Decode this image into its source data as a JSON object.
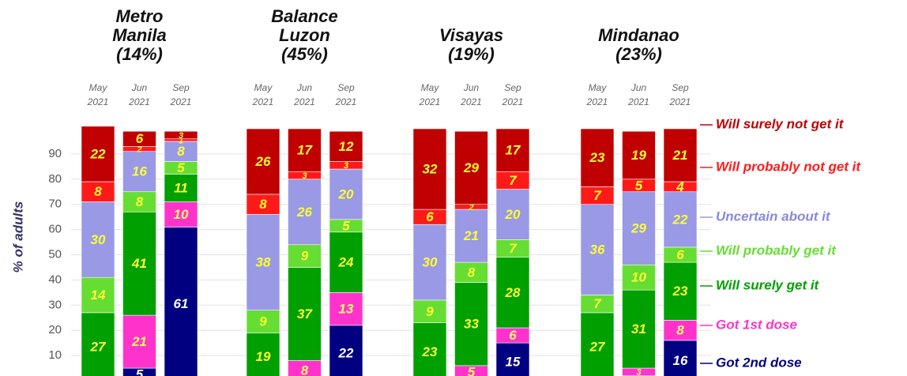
{
  "chart_data": {
    "type": "bar",
    "stacked": true,
    "ylabel": "% of adults",
    "ylim": [
      0,
      100
    ],
    "yticks": [
      10,
      20,
      30,
      40,
      50,
      60,
      70,
      80,
      90
    ],
    "grid": true,
    "legend": "right",
    "groups": [
      {
        "title_lines": [
          "Metro",
          "Manila",
          "(14%)"
        ],
        "categories": [
          [
            "May",
            "2021"
          ],
          [
            "Jun",
            "2021"
          ],
          [
            "Sep",
            "2021"
          ]
        ]
      },
      {
        "title_lines": [
          "Balance",
          "Luzon",
          "(45%)"
        ],
        "categories": [
          [
            "May",
            "2021"
          ],
          [
            "Jun",
            "2021"
          ],
          [
            "Sep",
            "2021"
          ]
        ]
      },
      {
        "title_lines": [
          "Visayas",
          "(19%)"
        ],
        "categories": [
          [
            "May",
            "2021"
          ],
          [
            "Jun",
            "2021"
          ],
          [
            "Sep",
            "2021"
          ]
        ]
      },
      {
        "title_lines": [
          "Mindanao",
          "(23%)"
        ],
        "categories": [
          [
            "May",
            "2021"
          ],
          [
            "Jun",
            "2021"
          ],
          [
            "Sep",
            "2021"
          ]
        ]
      }
    ],
    "series": [
      {
        "name": "Got 2nd dose",
        "color": "#000080",
        "label_color": "#ffffff",
        "values": [
          [
            0,
            5,
            61
          ],
          [
            0,
            0,
            22
          ],
          [
            0,
            1,
            15
          ],
          [
            0,
            2,
            16
          ]
        ]
      },
      {
        "name": "Got 1st dose",
        "color": "#ff33cc",
        "label_color": "#ffff66",
        "values": [
          [
            0,
            21,
            10
          ],
          [
            0,
            8,
            13
          ],
          [
            0,
            5,
            6
          ],
          [
            0,
            3,
            8
          ]
        ]
      },
      {
        "name": "Will surely get it",
        "color": "#00a000",
        "label_color": "#ffff33",
        "values": [
          [
            27,
            41,
            11
          ],
          [
            19,
            37,
            24
          ],
          [
            23,
            33,
            28
          ],
          [
            27,
            31,
            23
          ]
        ]
      },
      {
        "name": "Will probably get it",
        "color": "#66dd33",
        "label_color": "#ffff33",
        "values": [
          [
            14,
            8,
            5
          ],
          [
            9,
            9,
            5
          ],
          [
            9,
            8,
            7
          ],
          [
            7,
            10,
            6
          ]
        ]
      },
      {
        "name": "Uncertain about it",
        "color": "#9999e6",
        "label_color": "#ffff33",
        "values": [
          [
            30,
            16,
            8
          ],
          [
            38,
            26,
            20
          ],
          [
            30,
            21,
            20
          ],
          [
            36,
            29,
            22
          ]
        ]
      },
      {
        "name": "Will probably not get it",
        "color": "#ff1a1a",
        "label_color": "#ffff33",
        "values": [
          [
            8,
            2,
            1
          ],
          [
            8,
            3,
            3
          ],
          [
            6,
            2,
            7
          ],
          [
            7,
            5,
            4
          ]
        ]
      },
      {
        "name": "Will surely not get it",
        "color": "#c00000",
        "label_color": "#ffff33",
        "values": [
          [
            22,
            6,
            3
          ],
          [
            26,
            17,
            12
          ],
          [
            32,
            29,
            17
          ],
          [
            23,
            19,
            21
          ]
        ]
      }
    ]
  }
}
